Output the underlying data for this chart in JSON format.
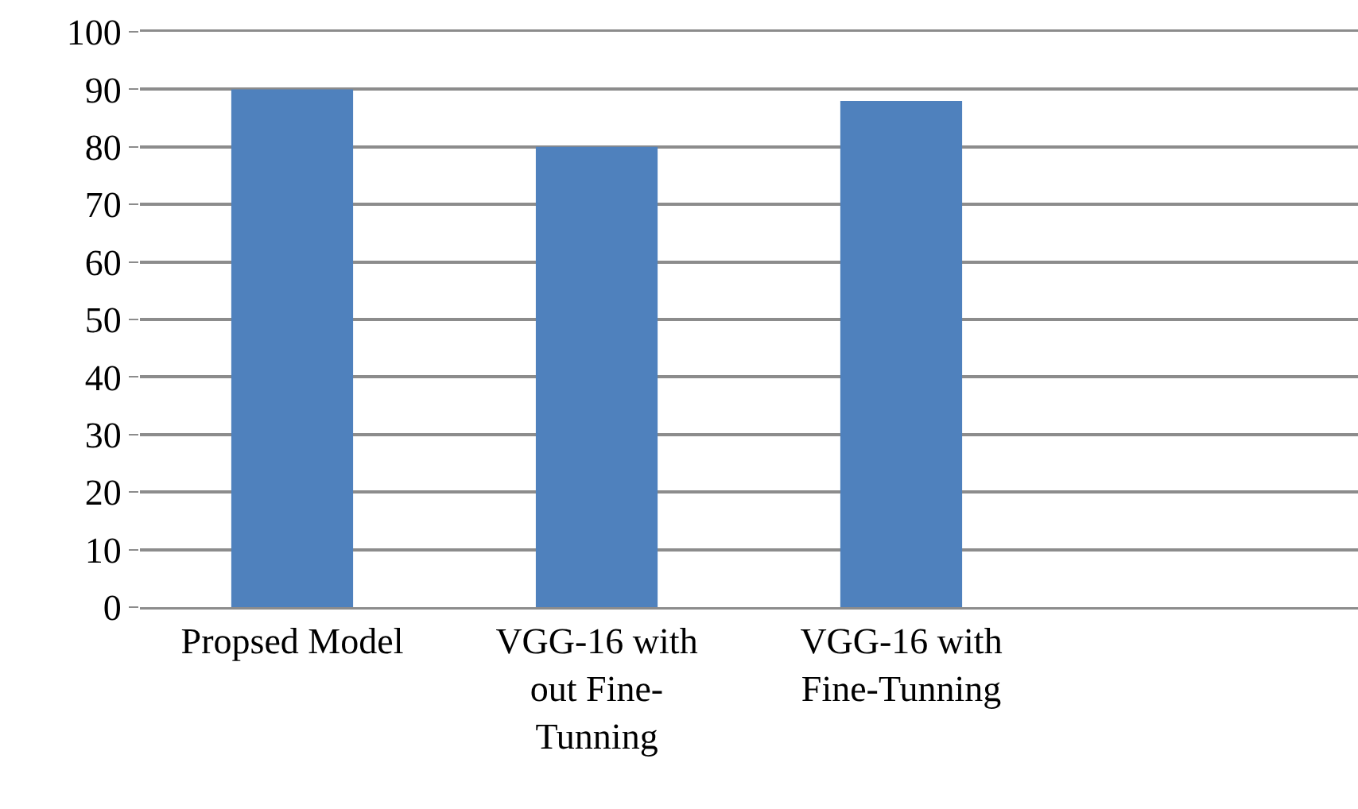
{
  "chart_data": {
    "type": "bar",
    "categories": [
      "Propsed Model",
      "VGG-16 with out Fine-Tunning",
      "VGG-16 with Fine-Tunning",
      null
    ],
    "values": [
      90,
      80,
      88,
      null
    ],
    "color": "#4f81bd",
    "ylim": [
      0,
      100
    ],
    "yticks": [
      0,
      10,
      20,
      30,
      40,
      50,
      60,
      70,
      80,
      90,
      100
    ],
    "grid": "y"
  }
}
